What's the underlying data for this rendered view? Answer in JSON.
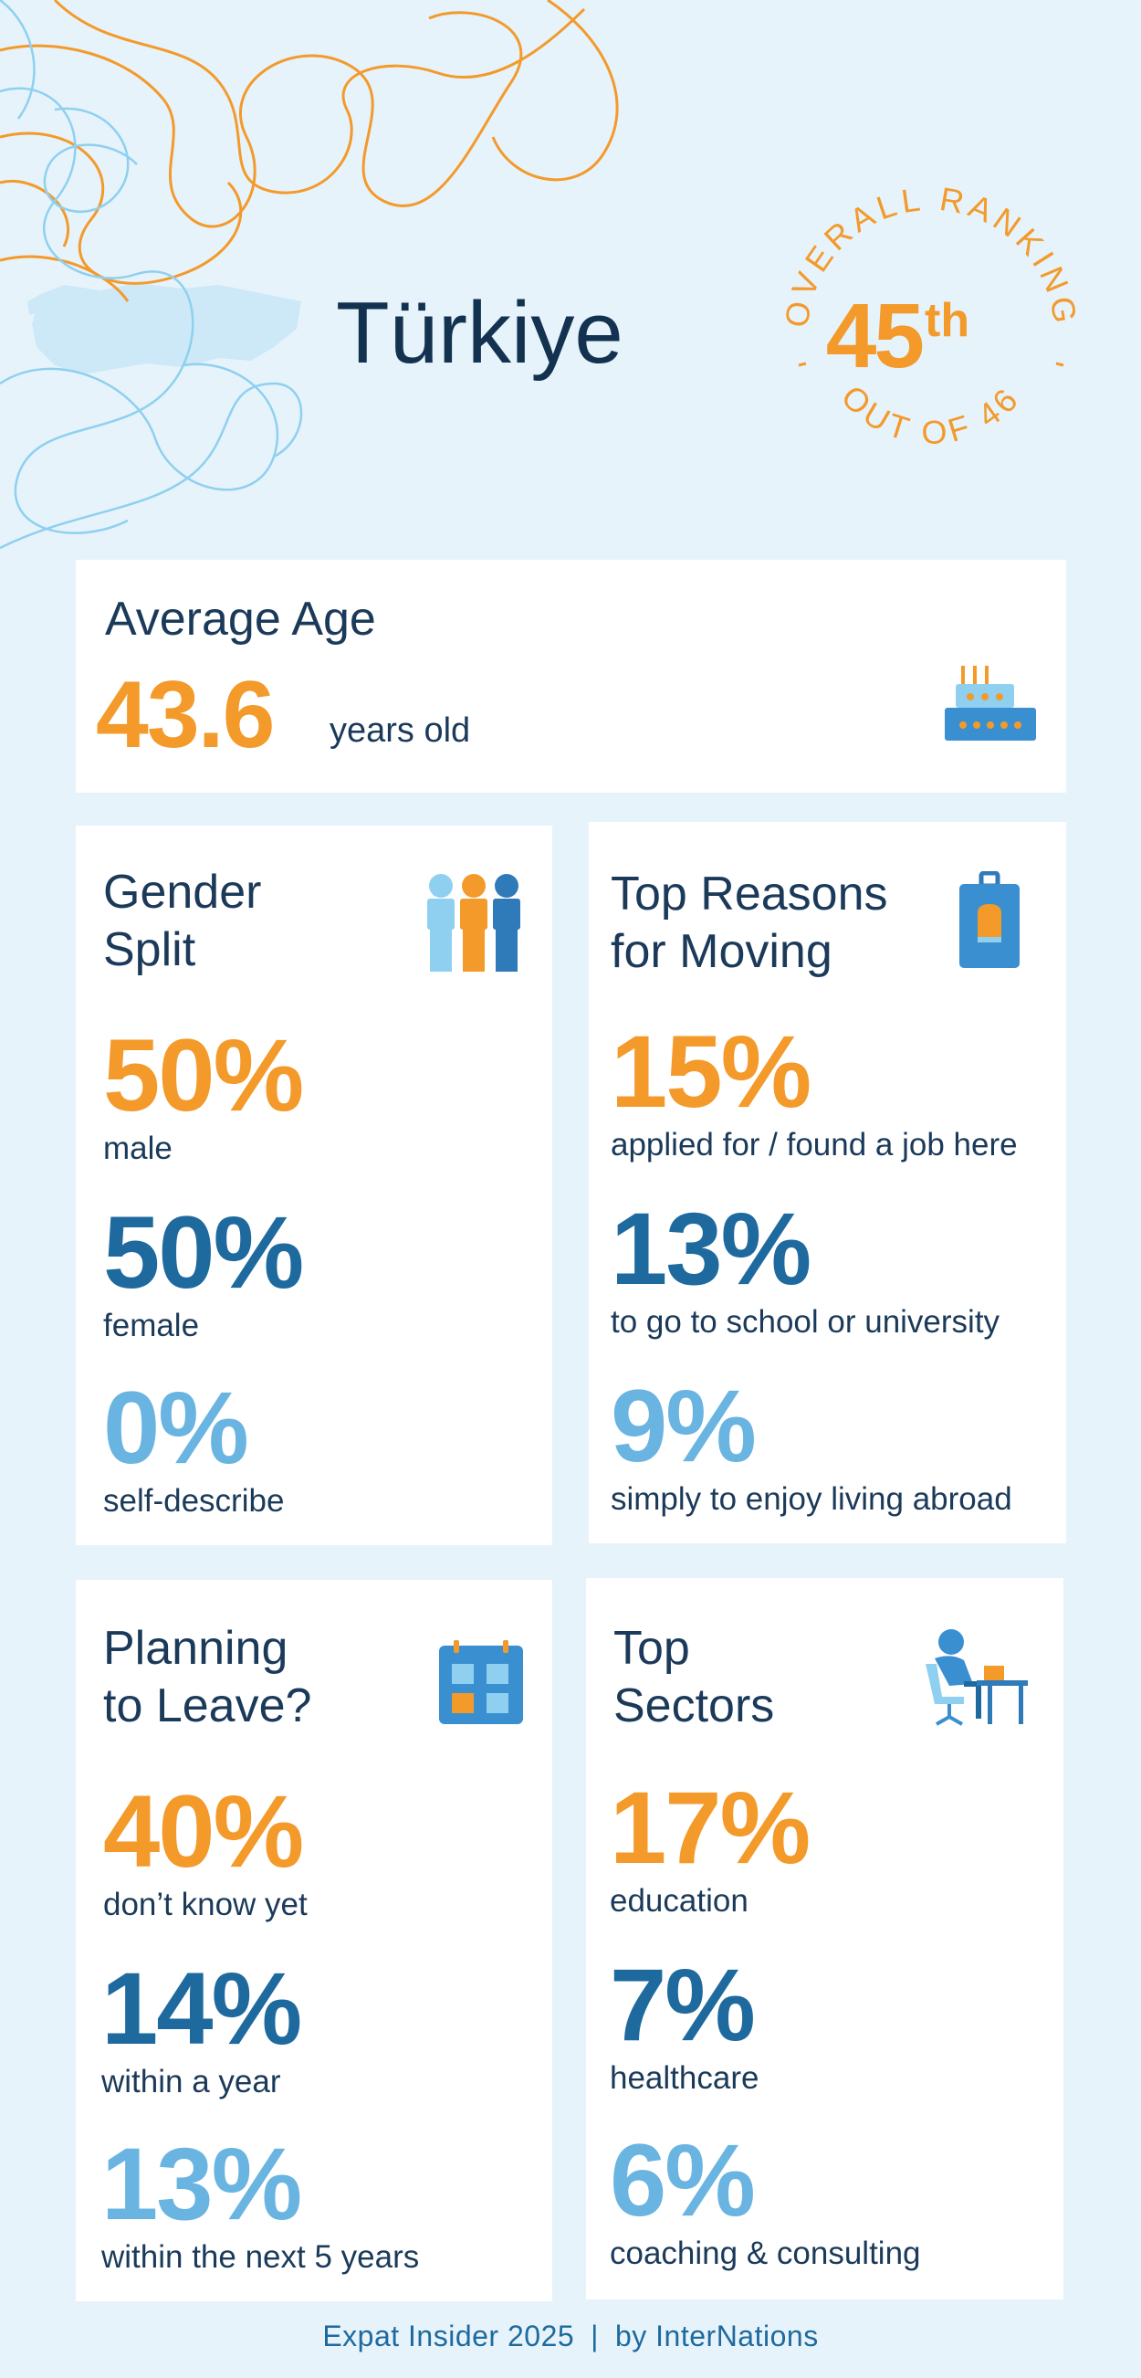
{
  "page": {
    "country": "Türkiye",
    "footer_left": "Expat Insider 2025",
    "footer_separator": "|",
    "footer_right": "by InterNations"
  },
  "ranking": {
    "arc_top": "OVERALL RANKING",
    "arc_bottom": "OUT OF 46",
    "rank_number": "45",
    "rank_suffix": "th"
  },
  "average_age": {
    "title": "Average Age",
    "value": "43.6",
    "unit": "years old",
    "icon": "birthday-cake-icon"
  },
  "gender_split": {
    "title_line1": "Gender",
    "title_line2": "Split",
    "icon": "people-group-icon",
    "stats": [
      {
        "value": "50%",
        "label": "male"
      },
      {
        "value": "50%",
        "label": "female"
      },
      {
        "value": "0%",
        "label": "self-describe"
      }
    ]
  },
  "top_reasons": {
    "title_line1": "Top Reasons",
    "title_line2": "for Moving",
    "icon": "suitcase-icon",
    "stats": [
      {
        "value": "15%",
        "label": "applied for / found a job here"
      },
      {
        "value": "13%",
        "label": "to go to school or university"
      },
      {
        "value": "9%",
        "label": "simply to enjoy living abroad"
      }
    ]
  },
  "planning_to_leave": {
    "title_line1": "Planning",
    "title_line2": "to Leave?",
    "icon": "calendar-icon",
    "stats": [
      {
        "value": "40%",
        "label": "don’t know yet"
      },
      {
        "value": "14%",
        "label": "within a year"
      },
      {
        "value": "13%",
        "label": "within the next 5 years"
      }
    ]
  },
  "top_sectors": {
    "title_line1": "Top",
    "title_line2": "Sectors",
    "icon": "person-at-desk-icon",
    "stats": [
      {
        "value": "17%",
        "label": "education"
      },
      {
        "value": "7%",
        "label": "healthcare"
      },
      {
        "value": "6%",
        "label": "coaching & consulting"
      }
    ]
  },
  "colors": {
    "background": "#e6f3fb",
    "orange": "#f39a2b",
    "dark_blue": "#1e6a9e",
    "light_blue": "#6ab4e2",
    "title": "#12324f"
  }
}
